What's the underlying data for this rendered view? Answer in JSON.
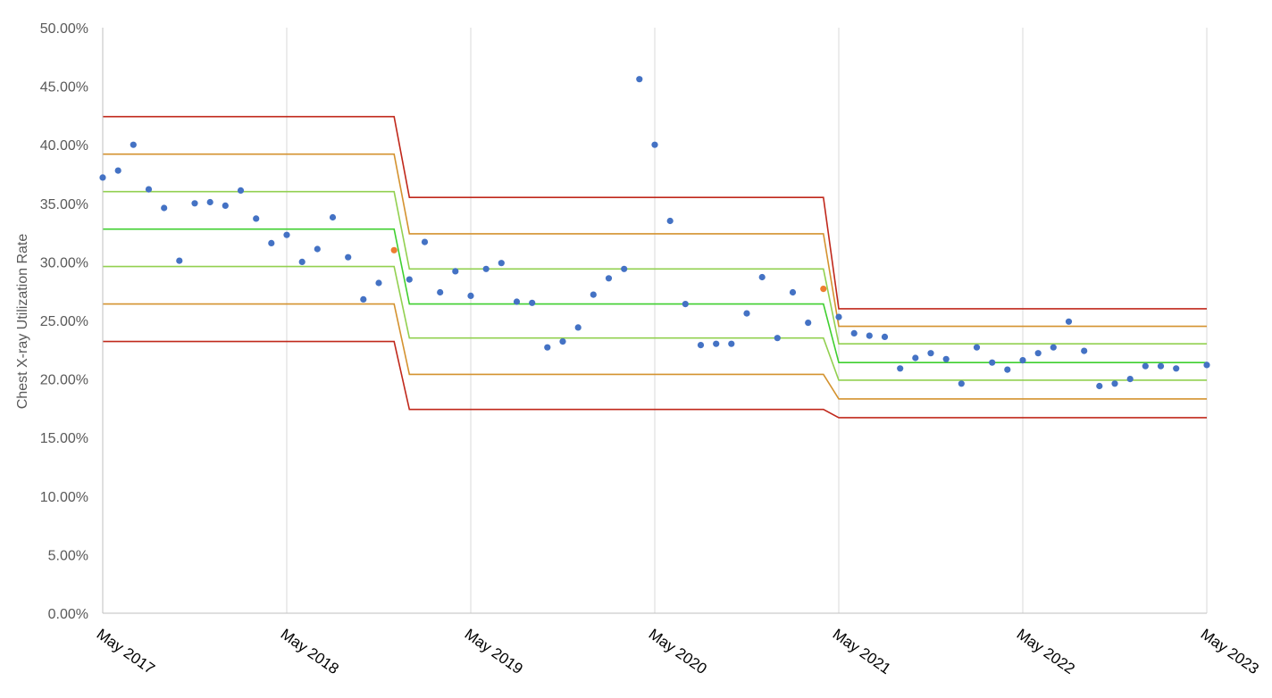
{
  "chart_data": {
    "type": "scatter",
    "title": "",
    "xlabel": "",
    "ylabel": "Chest X-ray Utilization Rate",
    "ylim": [
      0,
      0.5
    ],
    "y_ticks": [
      "0.00%",
      "5.00%",
      "10.00%",
      "15.00%",
      "20.00%",
      "25.00%",
      "30.00%",
      "35.00%",
      "40.00%",
      "45.00%",
      "50.00%"
    ],
    "x_range": [
      "2017-05",
      "2023-05"
    ],
    "x_ticks": [
      "May 2017",
      "May 2018",
      "May 2019",
      "May 2020",
      "May 2021",
      "May 2022",
      "May 2023"
    ],
    "grid": "vertical",
    "legend": "none",
    "colors": {
      "points": "#4472C4",
      "special_points": "#ED7D31",
      "limit_3sigma": "#C0281B",
      "limit_2sigma": "#D4922F",
      "limit_1sigma": "#92D050",
      "center_line": "#3FCF2F"
    },
    "series": [
      {
        "values": [
          [
            "2017-05",
            0.372
          ],
          [
            "2017-06",
            0.378
          ],
          [
            "2017-07",
            0.4
          ],
          [
            "2017-08",
            0.362
          ],
          [
            "2017-09",
            0.346
          ],
          [
            "2017-10",
            0.301
          ],
          [
            "2017-11",
            0.35
          ],
          [
            "2017-12",
            0.351
          ],
          [
            "2018-01",
            0.348
          ],
          [
            "2018-02",
            0.361
          ],
          [
            "2018-03",
            0.337
          ],
          [
            "2018-04",
            0.316
          ],
          [
            "2018-05",
            0.323
          ],
          [
            "2018-06",
            0.3
          ],
          [
            "2018-07",
            0.311
          ],
          [
            "2018-08",
            0.338
          ],
          [
            "2018-09",
            0.304
          ],
          [
            "2018-10",
            0.268
          ],
          [
            "2018-11",
            0.282
          ],
          [
            "2019-01",
            0.285
          ],
          [
            "2019-02",
            0.317
          ],
          [
            "2019-03",
            0.274
          ],
          [
            "2019-04",
            0.292
          ],
          [
            "2019-05",
            0.271
          ],
          [
            "2019-06",
            0.294
          ],
          [
            "2019-07",
            0.299
          ],
          [
            "2019-08",
            0.266
          ],
          [
            "2019-09",
            0.265
          ],
          [
            "2019-10",
            0.227
          ],
          [
            "2019-11",
            0.232
          ],
          [
            "2019-12",
            0.244
          ],
          [
            "2020-01",
            0.272
          ],
          [
            "2020-02",
            0.286
          ],
          [
            "2020-03",
            0.294
          ],
          [
            "2020-04",
            0.456
          ],
          [
            "2020-05",
            0.4
          ],
          [
            "2020-06",
            0.335
          ],
          [
            "2020-07",
            0.264
          ],
          [
            "2020-08",
            0.229
          ],
          [
            "2020-09",
            0.23
          ],
          [
            "2020-10",
            0.23
          ],
          [
            "2020-11",
            0.256
          ],
          [
            "2020-12",
            0.287
          ],
          [
            "2021-01",
            0.235
          ],
          [
            "2021-02",
            0.274
          ],
          [
            "2021-03",
            0.248
          ],
          [
            "2021-05",
            0.253
          ],
          [
            "2021-06",
            0.239
          ],
          [
            "2021-07",
            0.237
          ],
          [
            "2021-08",
            0.236
          ],
          [
            "2021-09",
            0.209
          ],
          [
            "2021-10",
            0.218
          ],
          [
            "2021-11",
            0.222
          ],
          [
            "2021-12",
            0.217
          ],
          [
            "2022-01",
            0.196
          ],
          [
            "2022-02",
            0.227
          ],
          [
            "2022-03",
            0.214
          ],
          [
            "2022-04",
            0.208
          ],
          [
            "2022-05",
            0.216
          ],
          [
            "2022-06",
            0.222
          ],
          [
            "2022-07",
            0.227
          ],
          [
            "2022-08",
            0.249
          ],
          [
            "2022-09",
            0.224
          ],
          [
            "2022-10",
            0.194
          ],
          [
            "2022-11",
            0.196
          ],
          [
            "2022-12",
            0.2
          ],
          [
            "2023-01",
            0.211
          ],
          [
            "2023-02",
            0.211
          ],
          [
            "2023-03",
            0.209
          ],
          [
            "2023-05",
            0.212
          ]
        ]
      },
      {
        "values": [
          [
            "2018-12",
            0.31
          ],
          [
            "2021-04",
            0.277
          ]
        ]
      }
    ],
    "control_limits": {
      "periods": [
        [
          "2017-05",
          "2018-12"
        ],
        [
          "2019-01",
          "2021-04"
        ],
        [
          "2021-05",
          "2023-05"
        ]
      ],
      "lines": [
        {
          "role": "upper-3sigma",
          "color": "#C0281B",
          "values": [
            0.424,
            0.355,
            0.26
          ]
        },
        {
          "role": "upper-2sigma",
          "color": "#D4922F",
          "values": [
            0.392,
            0.324,
            0.245
          ]
        },
        {
          "role": "upper-1sigma",
          "color": "#92D050",
          "values": [
            0.36,
            0.294,
            0.23
          ]
        },
        {
          "role": "center",
          "color": "#3FCF2F",
          "values": [
            0.328,
            0.264,
            0.214
          ]
        },
        {
          "role": "lower-1sigma",
          "color": "#92D050",
          "values": [
            0.296,
            0.235,
            0.199
          ]
        },
        {
          "role": "lower-2sigma",
          "color": "#D4922F",
          "values": [
            0.264,
            0.204,
            0.183
          ]
        },
        {
          "role": "lower-3sigma",
          "color": "#C0281B",
          "values": [
            0.232,
            0.174,
            0.167
          ]
        }
      ]
    }
  }
}
